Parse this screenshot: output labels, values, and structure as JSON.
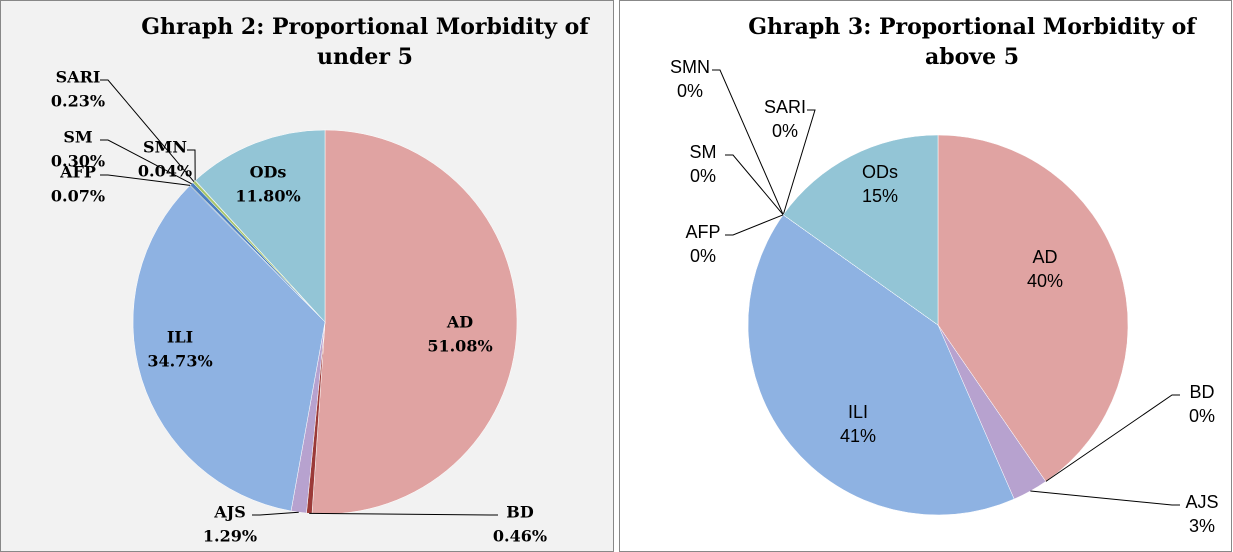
{
  "chart_data": [
    {
      "type": "pie",
      "title": "Ghraph 2: Proportional Morbidity of under 5",
      "categories": [
        "AD",
        "BD",
        "AJS",
        "ILI",
        "AFP",
        "SM",
        "SARI",
        "SMN",
        "ODs"
      ],
      "values": [
        51.08,
        0.46,
        1.29,
        34.73,
        0.07,
        0.3,
        0.23,
        0.04,
        11.8
      ],
      "value_labels": [
        "51.08%",
        "0.46%",
        "1.29%",
        "34.73%",
        "0.07%",
        "0.30%",
        "0.23%",
        "0.04%",
        "11.80%"
      ],
      "colors": [
        "#e0a3a2",
        "#9b3a38",
        "#b7a2cf",
        "#8eb2e2",
        "#2f5f8a",
        "#4b7fc0",
        "#a7c56b",
        "#6e9a3a",
        "#93c5d6"
      ]
    },
    {
      "type": "pie",
      "title": "Ghraph 3: Proportional Morbidity of above 5",
      "categories": [
        "AD",
        "BD",
        "AJS",
        "ILI",
        "AFP",
        "SM",
        "SARI",
        "SMN",
        "ODs"
      ],
      "values": [
        40,
        0,
        3,
        41,
        0,
        0,
        0,
        0,
        15
      ],
      "value_labels": [
        "40%",
        "0%",
        "3%",
        "41%",
        "0%",
        "0%",
        "0%",
        "0%",
        "15%"
      ],
      "colors": [
        "#e0a3a2",
        "#9b3a38",
        "#b7a2cf",
        "#8eb2e2",
        "#2f5f8a",
        "#4b7fc0",
        "#a7c56b",
        "#6e9a3a",
        "#93c5d6"
      ]
    }
  ]
}
